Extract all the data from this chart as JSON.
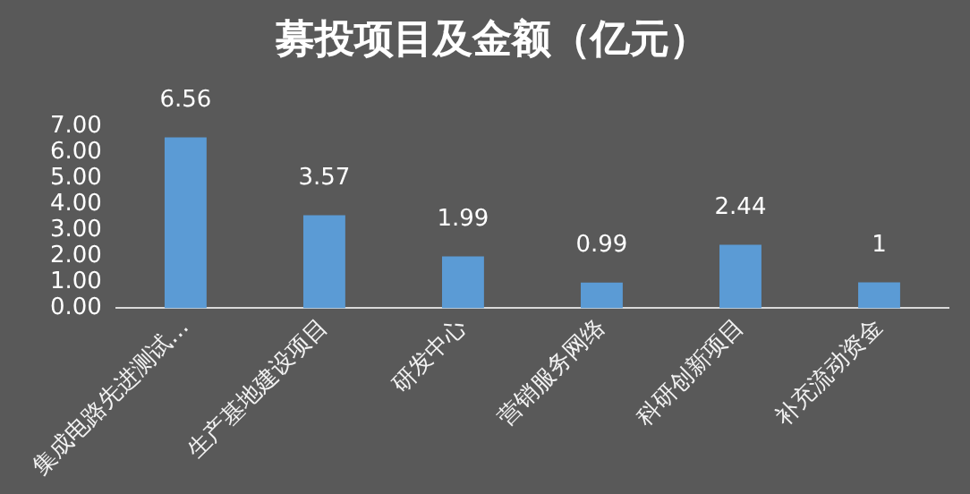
{
  "chart_data": {
    "type": "bar",
    "title": "募投项目及金额（亿元）",
    "categories": [
      "集成电路先进测试…",
      "生产基地建设项目",
      "研发中心",
      "营销服务网络",
      "科研创新项目",
      "补充流动资金"
    ],
    "values": [
      6.56,
      3.57,
      1.99,
      0.99,
      2.44,
      1
    ],
    "color": "#5b9bd5",
    "ylim": [
      0,
      7
    ],
    "yticks": [
      {
        "value": 0,
        "label": "0.00"
      },
      {
        "value": 1,
        "label": "1.00"
      },
      {
        "value": 2,
        "label": "2.00"
      },
      {
        "value": 3,
        "label": "3.00"
      },
      {
        "value": 4,
        "label": "4.00"
      },
      {
        "value": 5,
        "label": "5.00"
      },
      {
        "value": 6,
        "label": "6.00"
      },
      {
        "value": 7,
        "label": "7.00"
      }
    ],
    "grid": false,
    "legend": false,
    "data_labels": true
  }
}
